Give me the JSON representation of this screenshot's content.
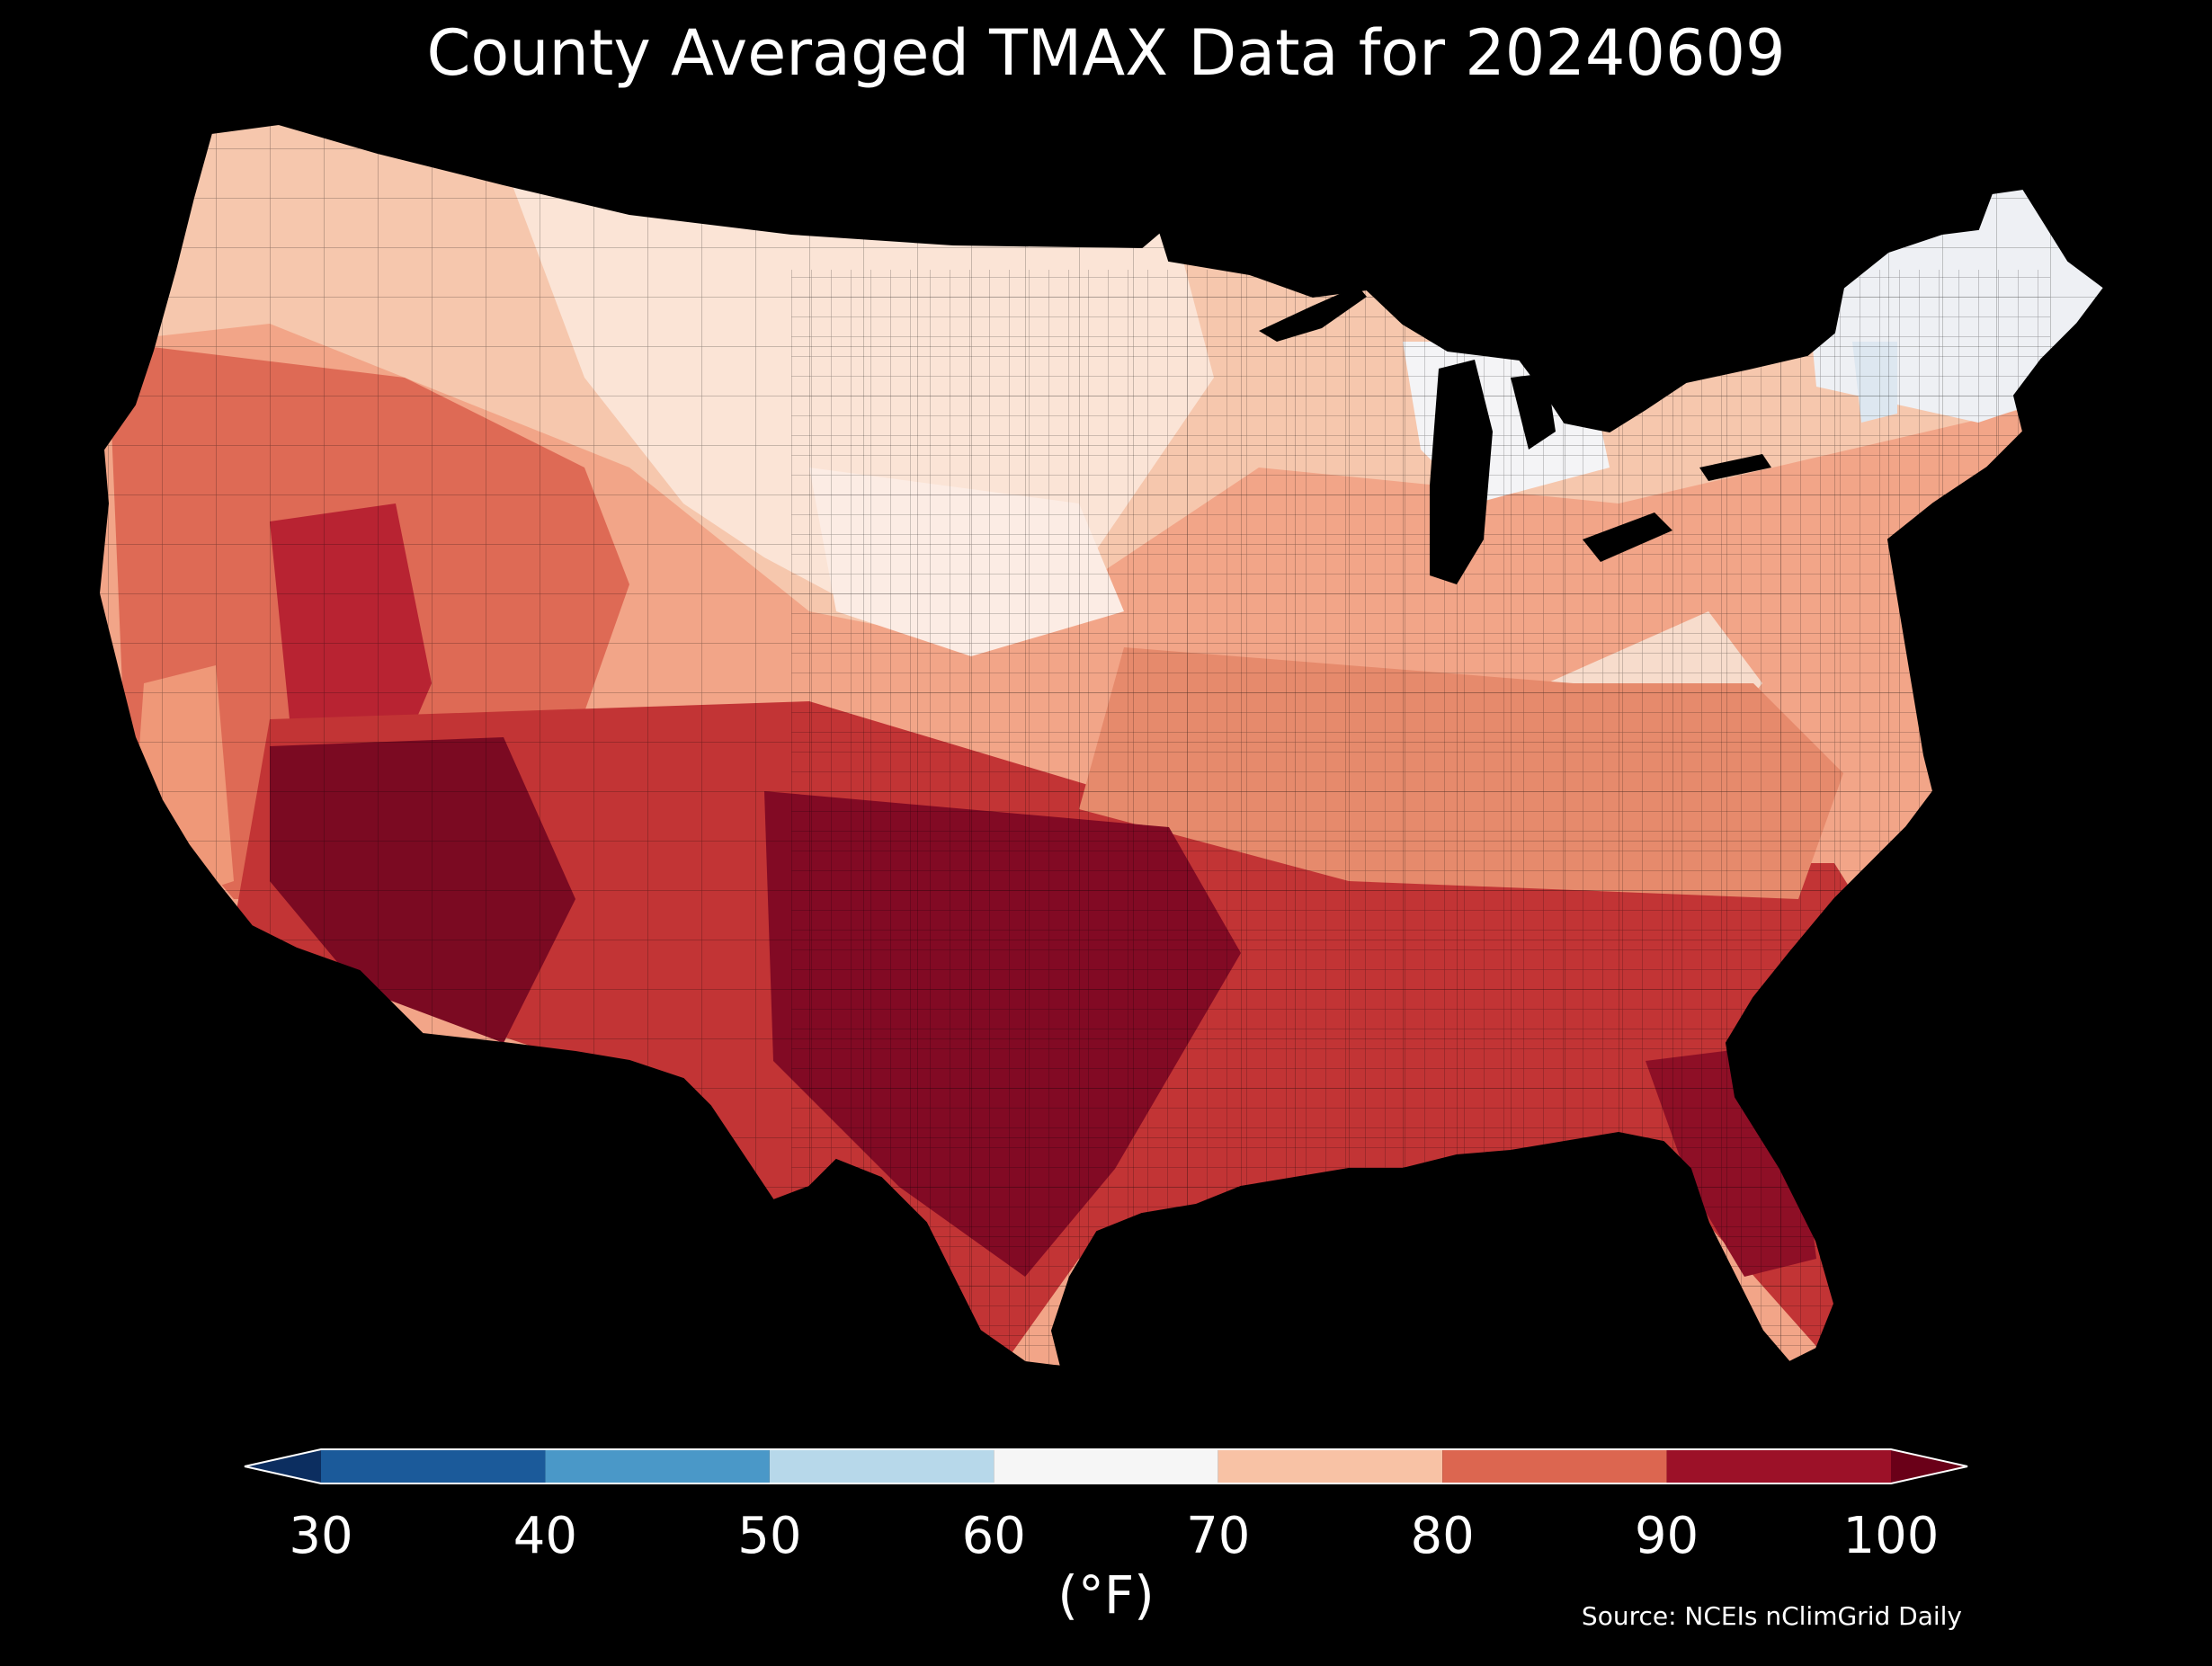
{
  "title": "County Averaged TMAX Data for 20240609",
  "source": "Source: NCEIs nClimGrid Daily",
  "colorbar": {
    "unit_label": "(°F)",
    "ticks": [
      "30",
      "40",
      "50",
      "60",
      "70",
      "80",
      "90",
      "100"
    ],
    "min": 30,
    "max": 100,
    "extend": "both",
    "bins": [
      {
        "from": 30,
        "to": 40,
        "color": "#1b5a9a"
      },
      {
        "from": 40,
        "to": 50,
        "color": "#4a98c8"
      },
      {
        "from": 50,
        "to": 60,
        "color": "#b7d8ea"
      },
      {
        "from": 60,
        "to": 70,
        "color": "#f6f6f6"
      },
      {
        "from": 70,
        "to": 80,
        "color": "#f8c2a5"
      },
      {
        "from": 80,
        "to": 90,
        "color": "#dc6650"
      },
      {
        "from": 90,
        "to": 100,
        "color": "#9c1128"
      }
    ],
    "under_color": "#0c2e60",
    "over_color": "#6a0018"
  },
  "map": {
    "variable": "TMAX",
    "region": "Contiguous United States",
    "units": "°F"
  }
}
